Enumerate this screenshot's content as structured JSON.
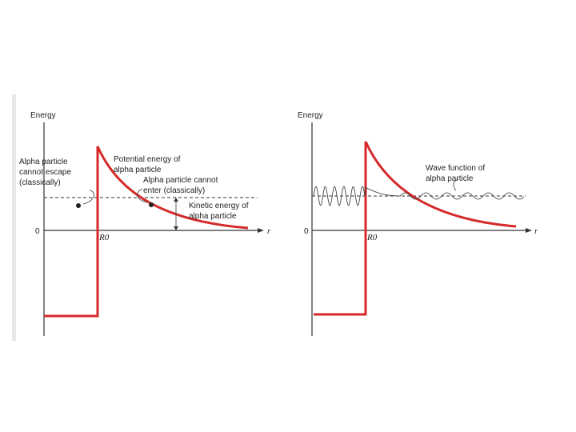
{
  "panels": [
    {
      "axis_label": "Energy",
      "origin": "0",
      "radius_label": "R0",
      "r_label": "r",
      "escape_label": [
        "Alpha particle",
        "cannot escape",
        "(classically)"
      ],
      "potential_label": [
        "Potential energy of",
        "alpha particle"
      ],
      "enter_label": [
        "Alpha particle cannot",
        "enter (classically)"
      ],
      "kinetic_label": [
        "Kinetic energy of",
        "alpha particle"
      ]
    },
    {
      "axis_label": "Energy",
      "origin": "0",
      "radius_label": "R0",
      "r_label": "r",
      "wave_label": [
        "Wave function of",
        "alpha particle"
      ]
    }
  ]
}
